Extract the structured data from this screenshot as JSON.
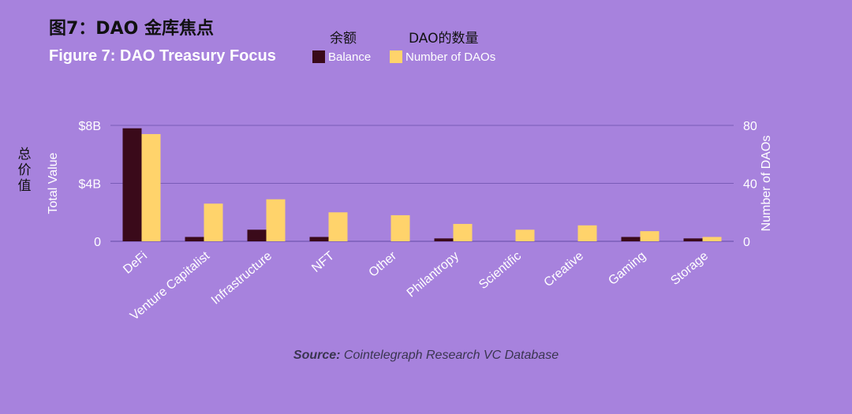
{
  "title_cn": "图7：DAO 金库焦点",
  "title_en": "Figure 7: DAO Treasury Focus",
  "legend_cn": {
    "balance": "余额",
    "count": "DAO的数量"
  },
  "ylabel_cn": "总价值",
  "source": {
    "label": "Source:",
    "text": " Cointelegraph Research VC Database"
  },
  "colors": {
    "balance": "#3a0a1a",
    "count": "#ffd36b",
    "background": "#a782dd",
    "text": "#ffffff"
  },
  "chart_data": {
    "type": "bar",
    "categories": [
      "DeFi",
      "Venture Capitalist",
      "Infrastructure",
      "NFT",
      "Other",
      "Philantropy",
      "Scientific",
      "Creative",
      "Gaming",
      "Storage"
    ],
    "series": [
      {
        "name": "Balance",
        "axis": "left",
        "values": [
          7.8,
          0.3,
          0.8,
          0.3,
          0,
          0.2,
          0,
          0,
          0.3,
          0.2
        ]
      },
      {
        "name": "Number of DAOs",
        "axis": "right",
        "values": [
          74,
          26,
          29,
          20,
          18,
          12,
          8,
          11,
          7,
          3
        ]
      }
    ],
    "ylabel": "Total Value",
    "y2label": "Number of DAOs",
    "ylim": [
      0,
      8
    ],
    "y2lim": [
      0,
      80
    ],
    "yticks": [
      "0",
      "$4B",
      "$8B"
    ],
    "y2ticks": [
      "0",
      "40",
      "80"
    ],
    "grid": true,
    "legend": "top"
  }
}
